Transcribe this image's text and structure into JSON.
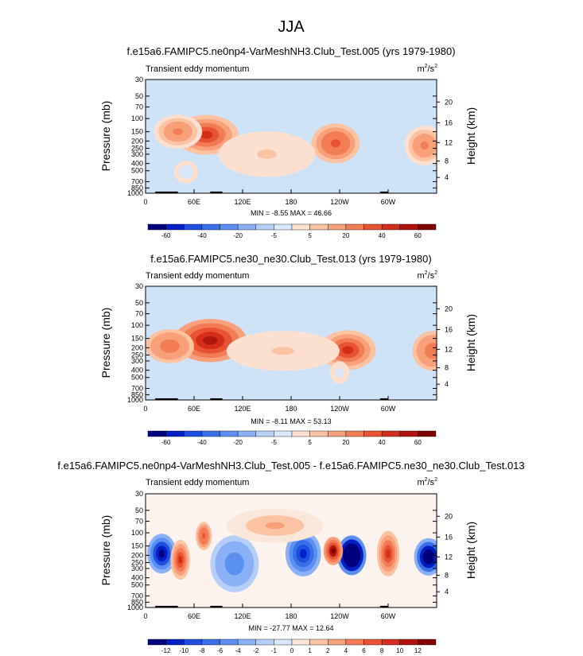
{
  "figure": {
    "title": "JJA"
  },
  "colors": {
    "plot_background": "#cfe3f8",
    "absent_data": "#000000",
    "frame": "#000000"
  },
  "chart_data": [
    {
      "type": "heatmap",
      "title": "f.e15a6.FAMIPC5.ne0np4-VarMeshNH3.Club_Test.005 (yrs 1979-1980)",
      "left_label": "Transient eddy momentum",
      "units_base": "m",
      "units_exp1": "2",
      "units_mid": "/s",
      "units_exp2": "2",
      "xlabel": "",
      "ylabel": "Pressure (mb)",
      "ylabel_right": "Height (km)",
      "x_ticks": [
        "0",
        "60E",
        "120E",
        "180",
        "120W",
        "60W"
      ],
      "x_tick_lon": [
        0,
        60,
        120,
        180,
        240,
        300
      ],
      "xlim": [
        0,
        360
      ],
      "y_ticks": [
        "30",
        "50",
        "70",
        "100",
        "150",
        "200",
        "250",
        "300",
        "400",
        "500",
        "700",
        "850",
        "1000"
      ],
      "y_tick_p": [
        30,
        50,
        70,
        100,
        150,
        200,
        250,
        300,
        400,
        500,
        700,
        850,
        1000
      ],
      "ylim": [
        30,
        1000
      ],
      "y_log": true,
      "height_ticks": [
        "4",
        "8",
        "12",
        "16",
        "20"
      ],
      "height_tick_p": [
        615,
        370,
        210,
        114,
        60
      ],
      "stats": "MIN =  -8.55  MAX =  46.66",
      "min": -8.55,
      "max": 46.66,
      "levels": [
        "-60",
        "-40",
        "-20",
        "-5",
        "5",
        "20",
        "40",
        "60"
      ],
      "levels_lon": [],
      "colorbar_colors": [
        "#00007f",
        "#0020c6",
        "#1f4fe0",
        "#3a6fea",
        "#5b8ff0",
        "#8ab1f5",
        "#b5cff9",
        "#d9e8fc",
        "#fde0cf",
        "#fcc3a3",
        "#f8a07a",
        "#f17c55",
        "#e85333",
        "#d32d1c",
        "#b0140e",
        "#800000"
      ],
      "features": [
        {
          "name": "jet-asia",
          "lon": 75,
          "p": 165,
          "lon_width": 40,
          "p_width": 0.35,
          "value": 46.7
        },
        {
          "name": "jet-asia-west",
          "lon": 40,
          "p": 150,
          "lon_width": 30,
          "p_width": 0.3,
          "value": 22
        },
        {
          "name": "jet-pacific",
          "lon": 235,
          "p": 215,
          "lon_width": 30,
          "p_width": 0.35,
          "value": 35
        },
        {
          "name": "jet-atlantic",
          "lon": 345,
          "p": 230,
          "lon_width": 25,
          "p_width": 0.35,
          "value": 20
        },
        {
          "name": "weak-lower",
          "lon": 150,
          "p": 300,
          "lon_width": 60,
          "p_width": 0.4,
          "value": 5
        },
        {
          "name": "min-area",
          "lon": 50,
          "p": 520,
          "lon_width": 15,
          "p_width": 0.2,
          "value": -8.55
        }
      ]
    },
    {
      "type": "heatmap",
      "title": "f.e15a6.FAMIPC5.ne30_ne30.Club_Test.013 (yrs 1979-1980)",
      "left_label": "Transient eddy momentum",
      "units_base": "m",
      "units_exp1": "2",
      "units_mid": "/s",
      "units_exp2": "2",
      "xlabel": "",
      "ylabel": "Pressure (mb)",
      "ylabel_right": "Height (km)",
      "x_ticks": [
        "0",
        "60E",
        "120E",
        "180",
        "120W",
        "60W"
      ],
      "x_tick_lon": [
        0,
        60,
        120,
        180,
        240,
        300
      ],
      "xlim": [
        0,
        360
      ],
      "y_ticks": [
        "30",
        "50",
        "70",
        "100",
        "150",
        "200",
        "250",
        "300",
        "400",
        "500",
        "700",
        "850",
        "1000"
      ],
      "y_tick_p": [
        30,
        50,
        70,
        100,
        150,
        200,
        250,
        300,
        400,
        500,
        700,
        850,
        1000
      ],
      "ylim": [
        30,
        1000
      ],
      "y_log": true,
      "height_ticks": [
        "4",
        "8",
        "12",
        "16",
        "20"
      ],
      "height_tick_p": [
        615,
        370,
        210,
        114,
        60
      ],
      "stats": "MIN =  -8.11  MAX =  53.13",
      "min": -8.11,
      "max": 53.13,
      "levels": [
        "-60",
        "-40",
        "-20",
        "-5",
        "5",
        "20",
        "40",
        "60"
      ],
      "colorbar_colors": [
        "#00007f",
        "#0020c6",
        "#1f4fe0",
        "#3a6fea",
        "#5b8ff0",
        "#8ab1f5",
        "#b5cff9",
        "#d9e8fc",
        "#fde0cf",
        "#fcc3a3",
        "#f8a07a",
        "#f17c55",
        "#e85333",
        "#d32d1c",
        "#b0140e",
        "#800000"
      ],
      "features": [
        {
          "name": "jet-asia",
          "lon": 80,
          "p": 160,
          "lon_width": 45,
          "p_width": 0.38,
          "value": 53.1
        },
        {
          "name": "jet-asia-west",
          "lon": 30,
          "p": 190,
          "lon_width": 30,
          "p_width": 0.3,
          "value": 25
        },
        {
          "name": "jet-pacific",
          "lon": 250,
          "p": 215,
          "lon_width": 35,
          "p_width": 0.35,
          "value": 40
        },
        {
          "name": "jet-atlantic",
          "lon": 355,
          "p": 220,
          "lon_width": 25,
          "p_width": 0.35,
          "value": 28
        },
        {
          "name": "weak-upper",
          "lon": 170,
          "p": 220,
          "lon_width": 70,
          "p_width": 0.35,
          "value": 6
        },
        {
          "name": "min-area",
          "lon": 240,
          "p": 430,
          "lon_width": 12,
          "p_width": 0.2,
          "value": -8.11
        }
      ]
    },
    {
      "type": "heatmap",
      "title": "f.e15a6.FAMIPC5.ne0np4-VarMeshNH3.Club_Test.005 - f.e15a6.FAMIPC5.ne30_ne30.Club_Test.013",
      "left_label": "Transient eddy momentum",
      "units_base": "m",
      "units_exp1": "2",
      "units_mid": "/s",
      "units_exp2": "2",
      "xlabel": "",
      "ylabel": "Pressure (mb)",
      "ylabel_right": "Height (km)",
      "x_ticks": [
        "0",
        "60E",
        "120E",
        "180",
        "120W",
        "60W"
      ],
      "x_tick_lon": [
        0,
        60,
        120,
        180,
        240,
        300
      ],
      "xlim": [
        0,
        360
      ],
      "y_ticks": [
        "30",
        "50",
        "70",
        "100",
        "150",
        "200",
        "250",
        "300",
        "400",
        "500",
        "700",
        "850",
        "1000"
      ],
      "y_tick_p": [
        30,
        50,
        70,
        100,
        150,
        200,
        250,
        300,
        400,
        500,
        700,
        850,
        1000
      ],
      "ylim": [
        30,
        1000
      ],
      "y_log": true,
      "height_ticks": [
        "4",
        "8",
        "12",
        "16",
        "20"
      ],
      "height_tick_p": [
        615,
        370,
        210,
        114,
        60
      ],
      "stats": "MIN = -27.77  MAX =  12.64",
      "min": -27.77,
      "max": 12.64,
      "levels": [
        "-12",
        "-10",
        "-8",
        "-6",
        "-4",
        "-2",
        "-1",
        "0",
        "1",
        "2",
        "4",
        "6",
        "8",
        "10",
        "12"
      ],
      "colorbar_colors": [
        "#00007f",
        "#0020c6",
        "#1f4fe0",
        "#3a6fea",
        "#5b8ff0",
        "#8ab1f5",
        "#b5cff9",
        "#d9e8fc",
        "#fbe7da",
        "#fcc3a3",
        "#f8a07a",
        "#f17c55",
        "#e85333",
        "#d32d1c",
        "#b0140e",
        "#800000"
      ],
      "features": [
        {
          "name": "neg-asia",
          "lon": 20,
          "p": 190,
          "lon_width": 18,
          "p_width": 0.35,
          "value": -14
        },
        {
          "name": "neg-pacific",
          "lon": 255,
          "p": 200,
          "lon_width": 18,
          "p_width": 0.35,
          "value": -27.8
        },
        {
          "name": "neg-atlantic",
          "lon": 350,
          "p": 210,
          "lon_width": 18,
          "p_width": 0.33,
          "value": -20
        },
        {
          "name": "neg-dateline",
          "lon": 195,
          "p": 190,
          "lon_width": 22,
          "p_width": 0.4,
          "value": -12
        },
        {
          "name": "neg-mid",
          "lon": 110,
          "p": 260,
          "lon_width": 30,
          "p_width": 0.5,
          "value": -6
        },
        {
          "name": "pos-asia-a",
          "lon": 43,
          "p": 230,
          "lon_width": 12,
          "p_width": 0.35,
          "value": 8
        },
        {
          "name": "pos-asia-b",
          "lon": 72,
          "p": 110,
          "lon_width": 10,
          "p_width": 0.25,
          "value": 7
        },
        {
          "name": "pos-pacific",
          "lon": 232,
          "p": 175,
          "lon_width": 12,
          "p_width": 0.25,
          "value": 12.6
        },
        {
          "name": "pos-east-pac",
          "lon": 300,
          "p": 190,
          "lon_width": 14,
          "p_width": 0.4,
          "value": 9
        },
        {
          "name": "pos-upper",
          "lon": 160,
          "p": 80,
          "lon_width": 60,
          "p_width": 0.3,
          "value": 2
        }
      ]
    }
  ]
}
